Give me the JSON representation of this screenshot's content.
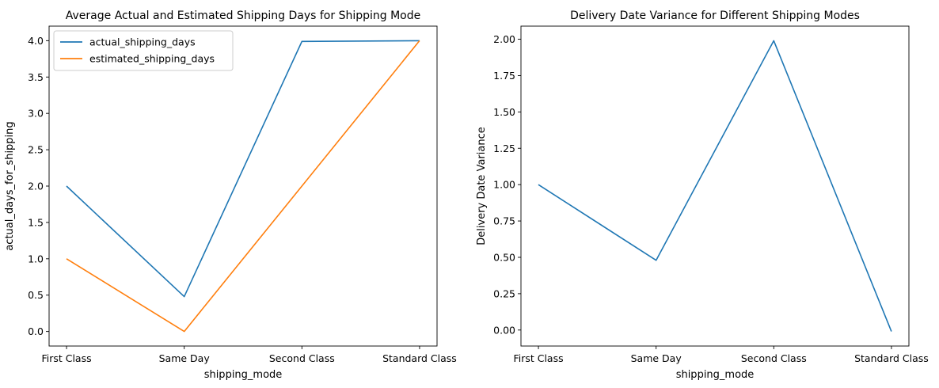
{
  "chart_data": [
    {
      "type": "line",
      "title": "Average Actual and Estimated Shipping Days for Shipping Mode",
      "xlabel": "shipping_mode",
      "ylabel": "actual_days_for_shipping",
      "categories": [
        "First Class",
        "Same Day",
        "Second Class",
        "Standard Class"
      ],
      "series": [
        {
          "name": "actual_shipping_days",
          "values": [
            2.0,
            0.48,
            3.99,
            4.0
          ],
          "color": "#1f77b4"
        },
        {
          "name": "estimated_shipping_days",
          "values": [
            1.0,
            0.0,
            2.0,
            4.0
          ],
          "color": "#ff7f0e"
        }
      ],
      "ylim": [
        -0.2,
        4.2
      ],
      "yticks": [
        0.0,
        0.5,
        1.0,
        1.5,
        2.0,
        2.5,
        3.0,
        3.5,
        4.0
      ],
      "ytick_labels": [
        "0.0",
        "0.5",
        "1.0",
        "1.5",
        "2.0",
        "2.5",
        "3.0",
        "3.5",
        "4.0"
      ],
      "legend": "upper-left",
      "grid": false
    },
    {
      "type": "line",
      "title": "Delivery Date Variance for Different Shipping Modes",
      "xlabel": "shipping_mode",
      "ylabel": "Delivery Date Variance",
      "categories": [
        "First Class",
        "Same Day",
        "Second Class",
        "Standard Class"
      ],
      "series": [
        {
          "values": [
            1.0,
            0.48,
            1.99,
            -0.01
          ],
          "color": "#1f77b4"
        }
      ],
      "ylim": [
        -0.11,
        2.09
      ],
      "yticks": [
        0.0,
        0.25,
        0.5,
        0.75,
        1.0,
        1.25,
        1.5,
        1.75,
        2.0
      ],
      "ytick_labels": [
        "0.00",
        "0.25",
        "0.50",
        "0.75",
        "1.00",
        "1.25",
        "1.50",
        "1.75",
        "2.00"
      ],
      "grid": false
    }
  ]
}
